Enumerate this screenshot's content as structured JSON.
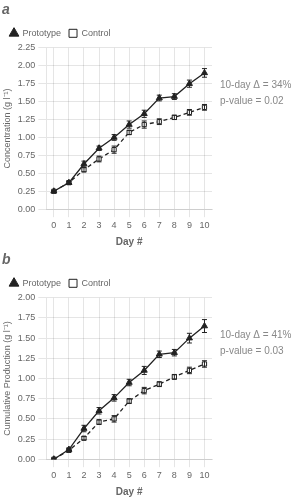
{
  "chart_data": [
    {
      "type": "line",
      "title": "a",
      "xlabel": "Day #",
      "ylabel": "Concentration (g l⁻¹)",
      "x": [
        0,
        1,
        2,
        3,
        4,
        5,
        6,
        7,
        8,
        9,
        10
      ],
      "series": [
        {
          "name": "Prototype",
          "color": "#222222",
          "marker": "triangle",
          "line_style": "solid",
          "values": [
            0.25,
            0.37,
            0.63,
            0.85,
            1.0,
            1.18,
            1.33,
            1.55,
            1.57,
            1.75,
            1.9
          ],
          "errors": [
            0.01,
            0.02,
            0.04,
            0.03,
            0.04,
            0.05,
            0.05,
            0.04,
            0.04,
            0.05,
            0.06
          ]
        },
        {
          "name": "Control",
          "color": "#222222",
          "marker": "open_square",
          "line_style": "dashed",
          "values": [
            0.25,
            0.37,
            0.55,
            0.7,
            0.83,
            1.07,
            1.18,
            1.22,
            1.28,
            1.35,
            1.42
          ],
          "errors": [
            0.01,
            0.02,
            0.03,
            0.04,
            0.05,
            0.03,
            0.05,
            0.04,
            0.03,
            0.04,
            0.04
          ]
        }
      ],
      "xlim": [
        -0.5,
        10.5
      ],
      "xticks": [
        0,
        1,
        2,
        3,
        4,
        5,
        6,
        7,
        8,
        9,
        10
      ],
      "ylim": [
        0.0,
        2.25
      ],
      "yticks": [
        {
          "value": 0,
          "label": "0.00"
        },
        0.25,
        {
          "value": 0.5,
          "label": "0.50"
        },
        0.75,
        {
          "value": 1,
          "label": "1.00"
        },
        1.25,
        {
          "value": 1.5,
          "label": "1.50"
        },
        1.75,
        {
          "value": 2,
          "label": "2.00"
        },
        2.25
      ],
      "grid": true,
      "legend": "upper left",
      "annotation": "10-day Δ = 34%\np-value = 0.02"
    },
    {
      "type": "line",
      "title": "b",
      "xlabel": "Day #",
      "ylabel": "Cumulative Production (g l⁻¹)",
      "x": [
        0,
        1,
        2,
        3,
        4,
        5,
        6,
        7,
        8,
        9,
        10
      ],
      "series": [
        {
          "name": "Prototype",
          "color": "#222222",
          "marker": "triangle",
          "line_style": "solid",
          "values": [
            0.0,
            0.12,
            0.38,
            0.6,
            0.76,
            0.95,
            1.1,
            1.3,
            1.32,
            1.5,
            1.65
          ],
          "errors": [
            0.0,
            0.02,
            0.04,
            0.04,
            0.04,
            0.04,
            0.05,
            0.04,
            0.04,
            0.06,
            0.08
          ]
        },
        {
          "name": "Control",
          "color": "#222222",
          "marker": "open_square",
          "line_style": "dashed",
          "values": [
            0.0,
            0.11,
            0.26,
            0.46,
            0.5,
            0.72,
            0.85,
            0.93,
            1.02,
            1.1,
            1.18
          ],
          "errors": [
            0.0,
            0.02,
            0.02,
            0.03,
            0.04,
            0.03,
            0.04,
            0.03,
            0.03,
            0.04,
            0.04
          ]
        }
      ],
      "xlim": [
        -0.5,
        10.5
      ],
      "xticks": [
        0,
        1,
        2,
        3,
        4,
        5,
        6,
        7,
        8,
        9,
        10
      ],
      "ylim": [
        0.0,
        2.0
      ],
      "yticks": [
        {
          "value": 0,
          "label": "0.00"
        },
        0.25,
        {
          "value": 0.5,
          "label": "0.50"
        },
        0.75,
        {
          "value": 1,
          "label": "1.00"
        },
        1.25,
        {
          "value": 1.5,
          "label": "1.50"
        },
        1.75,
        {
          "value": 2,
          "label": "2.00"
        }
      ],
      "grid": true,
      "legend": "upper left",
      "annotation": "10-day Δ = 41%\np-value = 0.03"
    }
  ]
}
